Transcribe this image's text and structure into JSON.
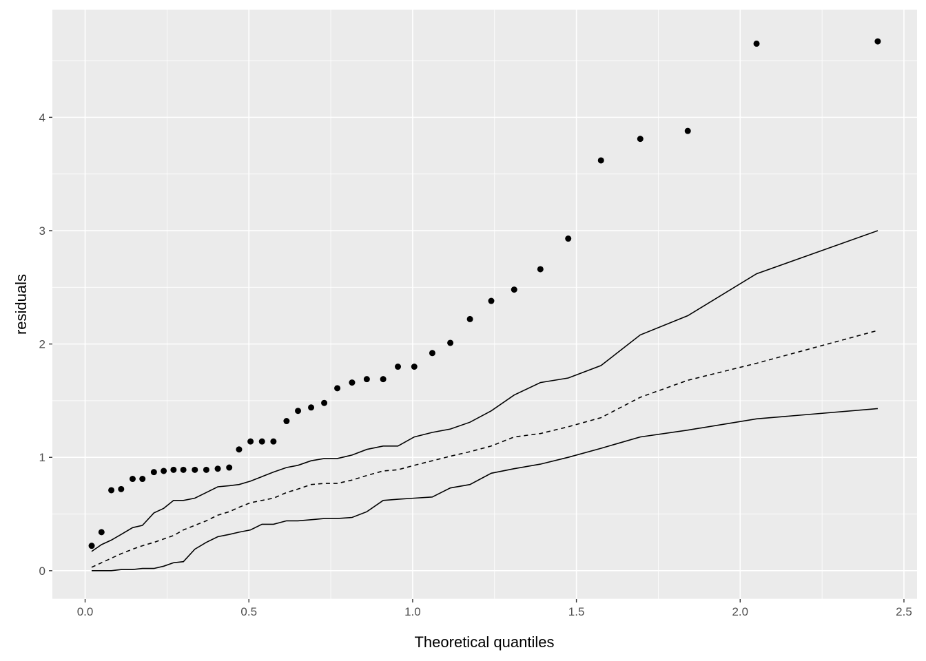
{
  "chart_data": {
    "type": "scatter",
    "title": "",
    "xlabel": "Theoretical quantiles",
    "ylabel": "residuals",
    "xlim": [
      -0.1,
      2.54
    ],
    "ylim": [
      -0.25,
      4.95
    ],
    "x_ticks": [
      0.0,
      0.5,
      1.0,
      1.5,
      2.0,
      2.5
    ],
    "x_tick_labels": [
      "0.0",
      "0.5",
      "1.0",
      "1.5",
      "2.0",
      "2.5"
    ],
    "y_ticks": [
      0,
      1,
      2,
      3,
      4
    ],
    "y_tick_labels": [
      "0",
      "1",
      "2",
      "3",
      "4"
    ],
    "grid": true,
    "panel_background": "#ebebeb",
    "grid_color": "#ffffff",
    "point_color": "#000000",
    "line_color": "#000000",
    "points": {
      "x": [
        0.02,
        0.05,
        0.08,
        0.11,
        0.145,
        0.175,
        0.21,
        0.24,
        0.27,
        0.3,
        0.335,
        0.37,
        0.405,
        0.44,
        0.47,
        0.505,
        0.54,
        0.575,
        0.615,
        0.65,
        0.69,
        0.73,
        0.77,
        0.815,
        0.86,
        0.91,
        0.955,
        1.005,
        1.06,
        1.115,
        1.175,
        1.24,
        1.31,
        1.39,
        1.475,
        1.575,
        1.695,
        1.84,
        2.05,
        2.42
      ],
      "y": [
        0.22,
        0.34,
        0.71,
        0.72,
        0.81,
        0.81,
        0.87,
        0.88,
        0.89,
        0.89,
        0.89,
        0.89,
        0.9,
        0.91,
        1.07,
        1.14,
        1.14,
        1.14,
        1.32,
        1.41,
        1.44,
        1.48,
        1.61,
        1.66,
        1.69,
        1.69,
        1.8,
        1.8,
        1.92,
        2.01,
        2.22,
        2.38,
        2.48,
        2.66,
        2.93,
        3.62,
        3.81,
        3.88,
        4.65,
        4.67
      ]
    },
    "series": [
      {
        "style": "solid",
        "x": [
          0.02,
          0.05,
          0.08,
          0.11,
          0.145,
          0.175,
          0.21,
          0.24,
          0.27,
          0.3,
          0.335,
          0.37,
          0.405,
          0.44,
          0.47,
          0.505,
          0.54,
          0.575,
          0.615,
          0.65,
          0.69,
          0.73,
          0.77,
          0.815,
          0.86,
          0.91,
          0.955,
          1.005,
          1.06,
          1.115,
          1.175,
          1.24,
          1.31,
          1.39,
          1.475,
          1.575,
          1.695,
          1.84,
          2.05,
          2.42
        ],
        "y": [
          0.17,
          0.23,
          0.27,
          0.32,
          0.38,
          0.4,
          0.51,
          0.55,
          0.62,
          0.62,
          0.64,
          0.69,
          0.74,
          0.75,
          0.76,
          0.79,
          0.83,
          0.87,
          0.91,
          0.93,
          0.97,
          0.99,
          0.99,
          1.02,
          1.07,
          1.1,
          1.1,
          1.18,
          1.22,
          1.25,
          1.31,
          1.41,
          1.55,
          1.66,
          1.7,
          1.81,
          2.08,
          2.25,
          2.62,
          3.0
        ]
      },
      {
        "style": "dashed",
        "x": [
          0.02,
          0.05,
          0.08,
          0.11,
          0.145,
          0.175,
          0.21,
          0.24,
          0.27,
          0.3,
          0.335,
          0.37,
          0.405,
          0.44,
          0.47,
          0.505,
          0.54,
          0.575,
          0.615,
          0.65,
          0.69,
          0.73,
          0.77,
          0.815,
          0.86,
          0.91,
          0.955,
          1.005,
          1.06,
          1.115,
          1.175,
          1.24,
          1.31,
          1.39,
          1.475,
          1.575,
          1.695,
          1.84,
          2.05,
          2.42
        ],
        "y": [
          0.03,
          0.07,
          0.11,
          0.15,
          0.19,
          0.22,
          0.25,
          0.28,
          0.31,
          0.36,
          0.4,
          0.44,
          0.49,
          0.52,
          0.56,
          0.6,
          0.62,
          0.64,
          0.69,
          0.72,
          0.76,
          0.77,
          0.77,
          0.8,
          0.84,
          0.88,
          0.89,
          0.93,
          0.97,
          1.01,
          1.05,
          1.1,
          1.18,
          1.21,
          1.27,
          1.35,
          1.53,
          1.68,
          1.83,
          2.12
        ]
      },
      {
        "style": "solid",
        "x": [
          0.02,
          0.05,
          0.08,
          0.11,
          0.145,
          0.175,
          0.21,
          0.24,
          0.27,
          0.3,
          0.335,
          0.37,
          0.405,
          0.44,
          0.47,
          0.505,
          0.54,
          0.575,
          0.615,
          0.65,
          0.69,
          0.73,
          0.77,
          0.815,
          0.86,
          0.91,
          0.955,
          1.005,
          1.06,
          1.115,
          1.175,
          1.24,
          1.31,
          1.39,
          1.475,
          1.575,
          1.695,
          1.84,
          2.05,
          2.42
        ],
        "y": [
          0.0,
          0.0,
          0.0,
          0.01,
          0.01,
          0.02,
          0.02,
          0.04,
          0.07,
          0.08,
          0.19,
          0.25,
          0.3,
          0.32,
          0.34,
          0.36,
          0.41,
          0.41,
          0.44,
          0.44,
          0.45,
          0.46,
          0.46,
          0.47,
          0.52,
          0.62,
          0.63,
          0.64,
          0.65,
          0.73,
          0.76,
          0.86,
          0.9,
          0.94,
          1.0,
          1.08,
          1.18,
          1.24,
          1.34,
          1.43
        ]
      }
    ]
  }
}
